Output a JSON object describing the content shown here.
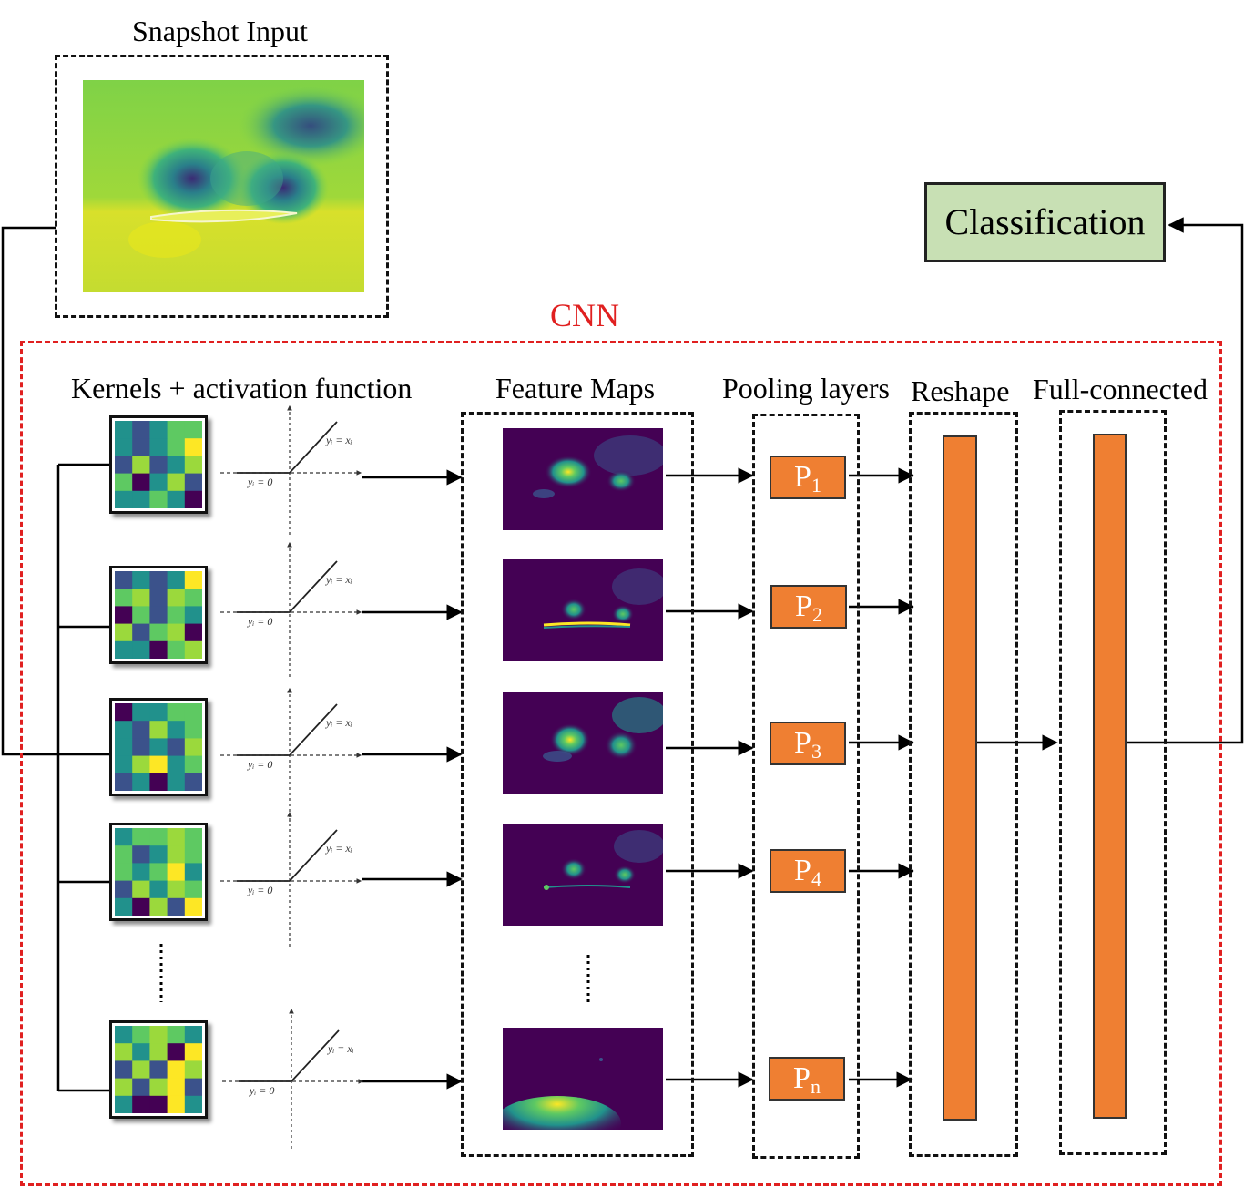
{
  "titles": {
    "snapshot_input": "Snapshot Input",
    "cnn": "CNN",
    "kernels": "Kernels + activation function",
    "feature_maps": "Feature Maps",
    "pooling": "Pooling layers",
    "reshape": "Reshape",
    "full_connected": "Full-connected",
    "classification": "Classification"
  },
  "activation": {
    "line_label": "yᵢ = xᵢ",
    "zero_label": "yᵢ = 0"
  },
  "pooling_units": [
    {
      "letter": "P",
      "sub": "1"
    },
    {
      "letter": "P",
      "sub": "2"
    },
    {
      "letter": "P",
      "sub": "3"
    },
    {
      "letter": "P",
      "sub": "4"
    },
    {
      "letter": "P",
      "sub": "n"
    }
  ],
  "ellipsis": "⋮",
  "colors": {
    "cnn_border": "#e02020",
    "pool_fill": "#ef7f32",
    "classification_fill": "#c8e0b4",
    "viridis": [
      "#440154",
      "#3b528b",
      "#21918c",
      "#5ec962",
      "#9bd93c",
      "#fde725"
    ]
  },
  "kernels": [
    [
      [
        2,
        1,
        2,
        3,
        3
      ],
      [
        2,
        1,
        2,
        3,
        5
      ],
      [
        1,
        4,
        1,
        2,
        4
      ],
      [
        3,
        0,
        2,
        4,
        1
      ],
      [
        2,
        2,
        3,
        2,
        0
      ]
    ],
    [
      [
        1,
        2,
        1,
        2,
        5
      ],
      [
        3,
        4,
        1,
        4,
        3
      ],
      [
        0,
        3,
        1,
        3,
        2
      ],
      [
        4,
        1,
        3,
        4,
        0
      ],
      [
        2,
        2,
        0,
        3,
        4
      ]
    ],
    [
      [
        0,
        2,
        2,
        3,
        3
      ],
      [
        2,
        1,
        4,
        2,
        3
      ],
      [
        2,
        1,
        2,
        1,
        4
      ],
      [
        2,
        4,
        5,
        2,
        3
      ],
      [
        1,
        2,
        0,
        2,
        1
      ]
    ],
    [
      [
        2,
        3,
        3,
        4,
        3
      ],
      [
        3,
        1,
        2,
        4,
        3
      ],
      [
        3,
        2,
        3,
        5,
        2
      ],
      [
        1,
        4,
        2,
        4,
        3
      ],
      [
        2,
        0,
        4,
        1,
        5
      ]
    ],
    [
      [
        2,
        3,
        4,
        3,
        2
      ],
      [
        4,
        2,
        4,
        0,
        5
      ],
      [
        1,
        4,
        1,
        5,
        4
      ],
      [
        4,
        1,
        4,
        5,
        1
      ],
      [
        2,
        0,
        0,
        5,
        2
      ]
    ]
  ]
}
